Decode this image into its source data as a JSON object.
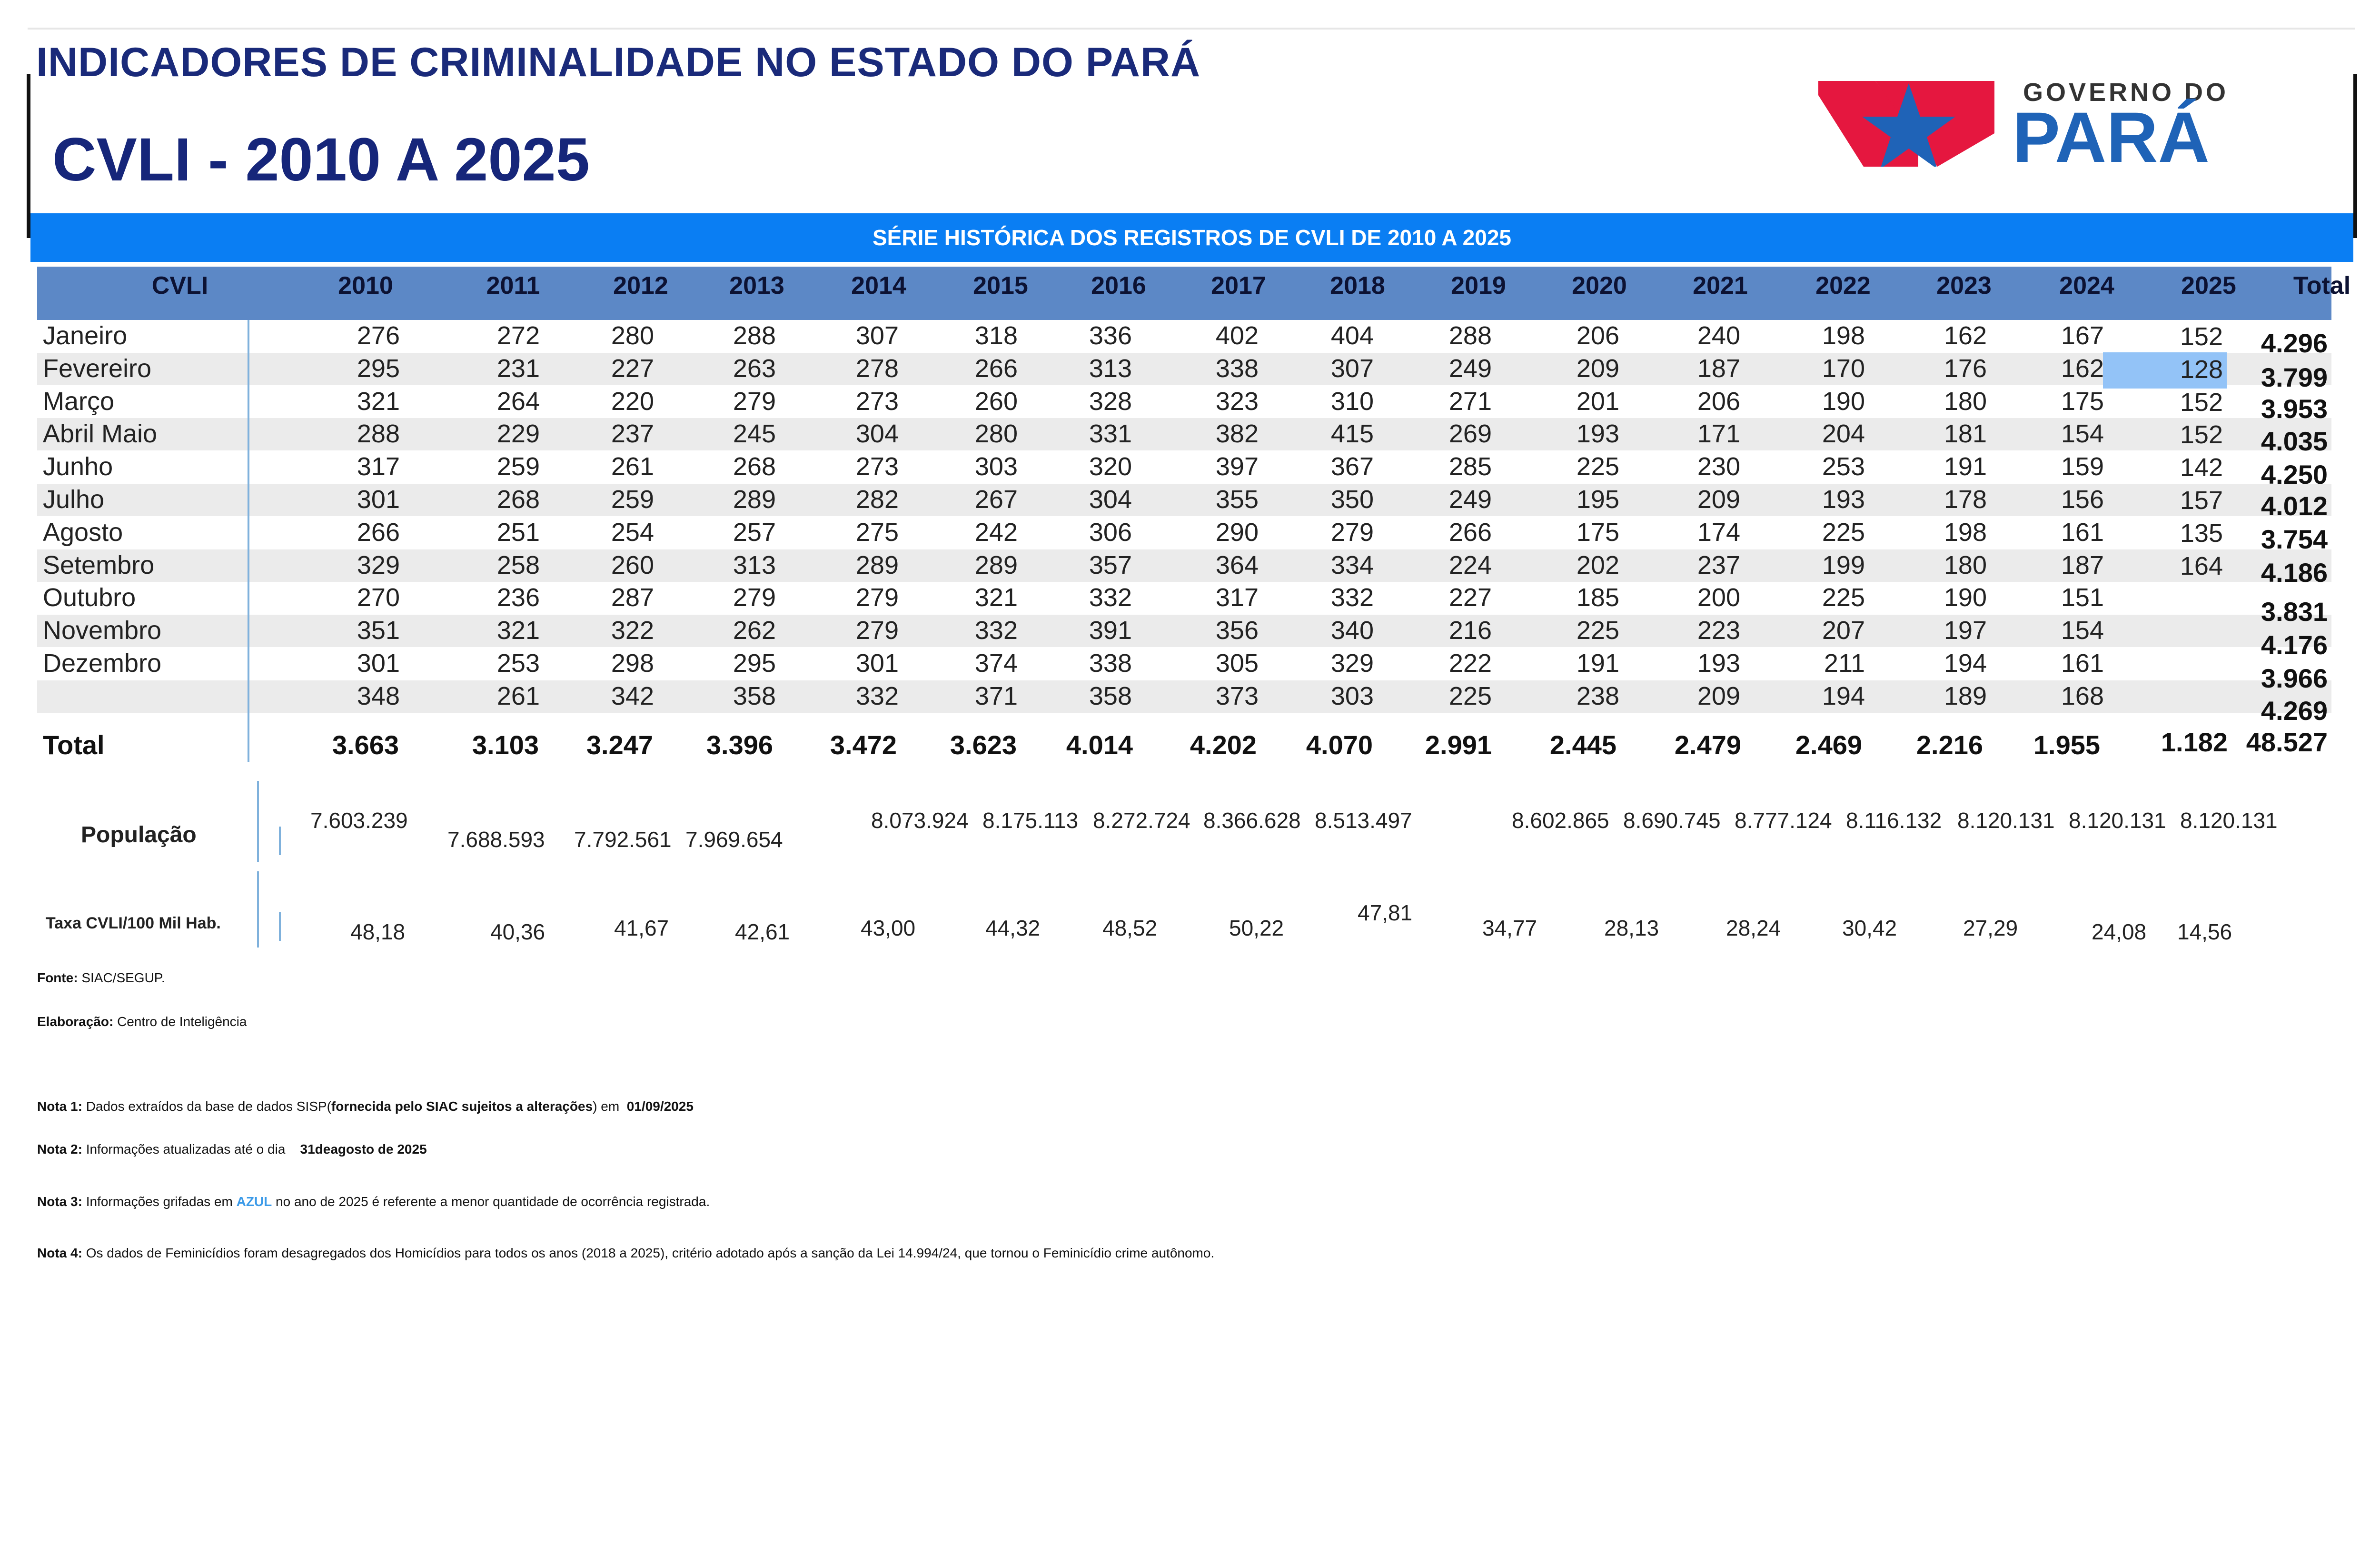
{
  "header": {
    "title": "INDICADORES DE CRIMINALIDADE NO ESTADO DO PARÁ",
    "subtitle": "CVLI - 2010 A 2025",
    "logo_text_top": "GOVERNO DO",
    "logo_text_main": "PARÁ"
  },
  "banner": "SÉRIE HISTÓRICA DOS REGISTROS DE CVLI DE 2010 A 2025",
  "table": {
    "columns": [
      "CVLI",
      "2010",
      "2011",
      "2012",
      "2013",
      "2014",
      "2015",
      "2016",
      "2017",
      "2018",
      "2019",
      "2020",
      "2021",
      "2022",
      "2023",
      "2024",
      "2025",
      "Total"
    ],
    "months": [
      "Janeiro",
      "Fevereiro",
      "Março",
      "Abril  Maio",
      "Junho",
      "Julho",
      "Agosto",
      "Setembro",
      "Outubro",
      "Novembro",
      "Dezembro",
      ""
    ],
    "rows": [
      [
        "276",
        "272",
        "280",
        "288",
        "307",
        "318",
        "336",
        "402",
        "404",
        "288",
        "206",
        "240",
        "198",
        "162",
        "167"
      ],
      [
        "295",
        "231",
        "227",
        "263",
        "278",
        "266",
        "313",
        "338",
        "307",
        "249",
        "209",
        "187",
        "170",
        "176",
        "162"
      ],
      [
        "321",
        "264",
        "220",
        "279",
        "273",
        "260",
        "328",
        "323",
        "310",
        "271",
        "201",
        "206",
        "190",
        "180",
        "175"
      ],
      [
        "288",
        "229",
        "237",
        "245",
        "304",
        "280",
        "331",
        "382",
        "415",
        "269",
        "193",
        "171",
        "204",
        "181",
        "154"
      ],
      [
        "317",
        "259",
        "261",
        "268",
        "273",
        "303",
        "320",
        "397",
        "367",
        "285",
        "225",
        "230",
        "253",
        "191",
        "159"
      ],
      [
        "301",
        "268",
        "259",
        "289",
        "282",
        "267",
        "304",
        "355",
        "350",
        "249",
        "195",
        "209",
        "193",
        "178",
        "156"
      ],
      [
        "266",
        "251",
        "254",
        "257",
        "275",
        "242",
        "306",
        "290",
        "279",
        "266",
        "175",
        "174",
        "225",
        "198",
        "161"
      ],
      [
        "329",
        "258",
        "260",
        "313",
        "289",
        "289",
        "357",
        "364",
        "334",
        "224",
        "202",
        "237",
        "199",
        "180",
        "187"
      ],
      [
        "270",
        "236",
        "287",
        "279",
        "279",
        "321",
        "332",
        "317",
        "332",
        "227",
        "185",
        "200",
        "225",
        "190",
        "151"
      ],
      [
        "351",
        "321",
        "322",
        "262",
        "279",
        "332",
        "391",
        "356",
        "340",
        "216",
        "225",
        "223",
        "207",
        "197",
        "154"
      ],
      [
        "301",
        "253",
        "298",
        "295",
        "301",
        "374",
        "338",
        "305",
        "329",
        "222",
        "191",
        "193",
        "211",
        "194",
        "161"
      ],
      [
        "348",
        "261",
        "342",
        "358",
        "332",
        "371",
        "358",
        "373",
        "303",
        "225",
        "238",
        "209",
        "194",
        "189",
        "168"
      ]
    ],
    "col2025": [
      "152",
      "128",
      "152",
      "152",
      "142",
      "157",
      "135",
      "164"
    ],
    "totals_right": [
      "4.296",
      "3.799",
      "3.953",
      "4.035",
      "4.250",
      "4.012",
      "3.754",
      "4.186",
      "3.831",
      "4.176",
      "3.966",
      "4.269"
    ],
    "total_label": "Total",
    "total_row": [
      "3.663",
      "3.103",
      "3.247",
      "3.396",
      "3.472",
      "3.623",
      "4.014",
      "4.202",
      "4.070",
      "2.991",
      "2.445",
      "2.479",
      "2.469",
      "2.216",
      "1.955"
    ],
    "total_2025": "1.182",
    "grand_total": "48.527"
  },
  "populacao": {
    "label": "População",
    "values": [
      "7.603.239",
      "7.688.593",
      "7.792.561",
      "7.969.654",
      "8.073.924",
      "8.175.113",
      "8.272.724",
      "8.366.628",
      "8.513.497",
      "8.602.865",
      "8.690.745",
      "8.777.124",
      "8.116.132",
      "8.120.131",
      "8.120.131",
      "8.120.131"
    ]
  },
  "taxa": {
    "label": "Taxa CVLI/100 Mil Hab.",
    "values": [
      "48,18",
      "40,36",
      "41,67",
      "42,61",
      "43,00",
      "44,32",
      "48,52",
      "50,22",
      "47,81",
      "34,77",
      "28,13",
      "28,24",
      "30,42",
      "27,29",
      "24,08",
      "14,56"
    ]
  },
  "notes": {
    "fonte_label": "Fonte:",
    "fonte_text": "SIAC/SEGUP.",
    "elab_label": "Elaboração:",
    "elab_text": "Centro de Inteligência",
    "n1_label": "Nota 1:",
    "n1_text": "Dados extraídos da base de dados SISP(",
    "n1_bold": "fornecida pelo SIAC sujeitos a alterações",
    "n1_after": ") em",
    "n1_date": "01/09/2025",
    "n2_label": "Nota 2:",
    "n2_text": "Informações atualizadas até o dia",
    "n2_date": "31deagosto de 2025",
    "n3_label": "Nota 3:",
    "n3_text_a": "Informações grifadas em",
    "n3_azul": "AZUL",
    "n3_text_b": "no ano de 2025 é referente a menor quantidade de ocorrência registrada.",
    "n4_label": "Nota 4:",
    "n4_text": "Os dados de Feminicídios foram desagregados dos Homicídios para todos os anos (2018 a 2025), critério adotado após a sanção da Lei 14.994/24, que tornou o Feminicídio crime autônomo."
  },
  "colors": {
    "title_blue": "#1a2a7a",
    "banner_blue": "#0a7ef3",
    "header_blue": "#5c88c6",
    "highlight_blue": "#93c3f7",
    "logo_red": "#e5173f",
    "logo_blue": "#1f63b7"
  }
}
